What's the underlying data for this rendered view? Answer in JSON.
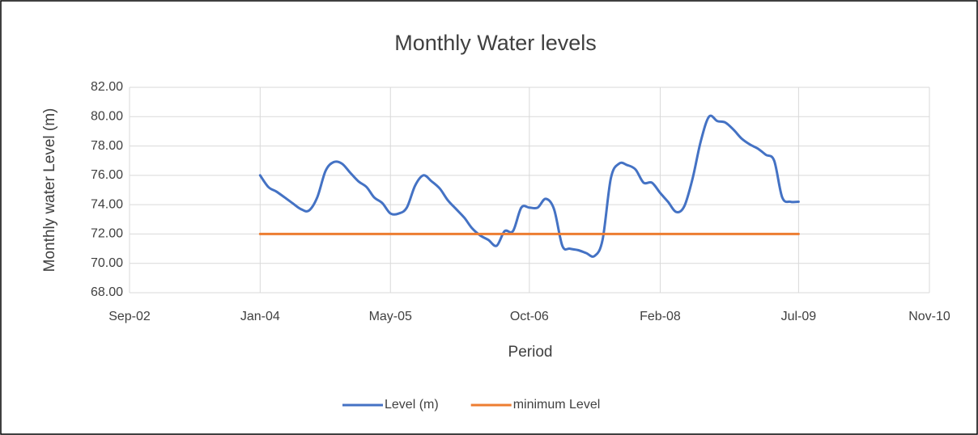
{
  "chart_data": {
    "type": "line",
    "title": "Monthly Water levels",
    "x_label": "Period",
    "y_label": "Monthly water Level (m)",
    "x": [
      "Jan-04",
      "Feb-04",
      "Mar-04",
      "Apr-04",
      "May-04",
      "Jun-04",
      "Jul-04",
      "Aug-04",
      "Sep-04",
      "Oct-04",
      "Nov-04",
      "Dec-04",
      "Jan-05",
      "Feb-05",
      "Mar-05",
      "Apr-05",
      "May-05",
      "Jun-05",
      "Jul-05",
      "Aug-05",
      "Sep-05",
      "Oct-05",
      "Nov-05",
      "Dec-05",
      "Jan-06",
      "Feb-06",
      "Mar-06",
      "Apr-06",
      "May-06",
      "Jun-06",
      "Jul-06",
      "Aug-06",
      "Sep-06",
      "Oct-06",
      "Nov-06",
      "Dec-06",
      "Jan-07",
      "Feb-07",
      "Mar-07",
      "Apr-07",
      "May-07",
      "Jun-07",
      "Jul-07",
      "Aug-07",
      "Sep-07",
      "Oct-07",
      "Nov-07",
      "Dec-07",
      "Jan-08",
      "Feb-08",
      "Mar-08",
      "Apr-08",
      "May-08",
      "Jun-08",
      "Jul-08",
      "Aug-08",
      "Sep-08",
      "Oct-08",
      "Nov-08",
      "Dec-08",
      "Jan-09",
      "Feb-09",
      "Mar-09",
      "Apr-09",
      "May-09",
      "Jun-09",
      "Jul-09"
    ],
    "series": [
      {
        "name": "Level (m)",
        "color": "#4472c4",
        "values": [
          76.0,
          75.2,
          74.9,
          74.5,
          74.1,
          73.7,
          73.6,
          74.5,
          76.3,
          76.9,
          76.8,
          76.2,
          75.6,
          75.2,
          74.5,
          74.1,
          73.4,
          73.4,
          73.8,
          75.3,
          76.0,
          75.6,
          75.1,
          74.3,
          73.7,
          73.1,
          72.4,
          71.9,
          71.6,
          71.2,
          72.2,
          72.2,
          73.8,
          73.8,
          73.8,
          74.4,
          73.7,
          71.2,
          71.0,
          70.9,
          70.7,
          70.5,
          71.6,
          75.8,
          76.8,
          76.7,
          76.4,
          75.5,
          75.5,
          74.8,
          74.2,
          73.5,
          73.9,
          75.8,
          78.3,
          80.0,
          79.7,
          79.6,
          79.1,
          78.5,
          78.1,
          77.8,
          77.4,
          77.0,
          74.5,
          74.2,
          74.2
        ]
      },
      {
        "name": "minimum Level",
        "color": "#ed7d31",
        "values": [
          72,
          72,
          72,
          72,
          72,
          72,
          72,
          72,
          72,
          72,
          72,
          72,
          72,
          72,
          72,
          72,
          72,
          72,
          72,
          72,
          72,
          72,
          72,
          72,
          72,
          72,
          72,
          72,
          72,
          72,
          72,
          72,
          72,
          72,
          72,
          72,
          72,
          72,
          72,
          72,
          72,
          72,
          72,
          72,
          72,
          72,
          72,
          72,
          72,
          72,
          72,
          72,
          72,
          72,
          72,
          72,
          72,
          72,
          72,
          72,
          72,
          72,
          72,
          72,
          72,
          72,
          72
        ]
      }
    ],
    "xlim": [
      "Sep-02",
      "Nov-10"
    ],
    "xticks": [
      "Sep-02",
      "Jan-04",
      "May-05",
      "Oct-06",
      "Feb-08",
      "Jul-09",
      "Nov-10"
    ],
    "ylim": [
      68,
      82
    ],
    "yticks": [
      {
        "value": 68,
        "label": "68.00"
      },
      {
        "value": 70,
        "label": "70.00"
      },
      {
        "value": 72,
        "label": "72.00"
      },
      {
        "value": 74,
        "label": "74.00"
      },
      {
        "value": 76,
        "label": "76.00"
      },
      {
        "value": 78,
        "label": "78.00"
      },
      {
        "value": 80,
        "label": "80.00"
      },
      {
        "value": 82,
        "label": "82.00"
      }
    ],
    "grid": true,
    "smooth": true,
    "legend": "bottom"
  }
}
